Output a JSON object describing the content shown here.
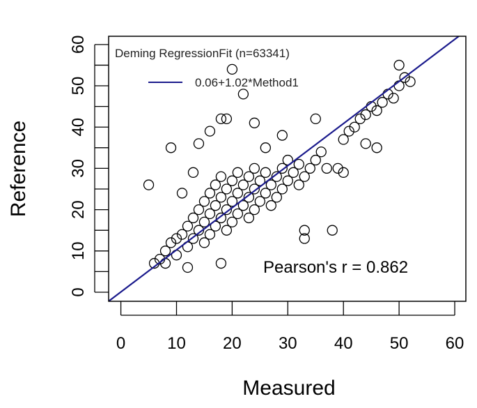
{
  "chart_data": {
    "type": "scatter",
    "xlabel": "Measured",
    "ylabel": "Reference",
    "xlim": [
      -2.2,
      62
    ],
    "ylim": [
      -2.2,
      62
    ],
    "x_ticks": [
      0,
      10,
      20,
      30,
      40,
      50,
      60
    ],
    "y_ticks": [
      0,
      10,
      20,
      30,
      40,
      50,
      60
    ],
    "legend": {
      "title": "Deming RegressionFit (n=63341)",
      "entry": "0.06+1.02*Method1",
      "position": "top-left"
    },
    "annotation": "Pearson's r = 0.862",
    "regression": {
      "intercept": 0.06,
      "slope": 1.02,
      "color": "#1a1a8c"
    },
    "point_color": "#000000",
    "series": [
      {
        "points": [
          [
            7,
            8
          ],
          [
            8,
            10
          ],
          [
            9,
            12
          ],
          [
            10,
            13
          ],
          [
            10,
            9
          ],
          [
            11,
            14
          ],
          [
            12,
            11
          ],
          [
            12,
            16
          ],
          [
            13,
            13
          ],
          [
            13,
            18
          ],
          [
            14,
            15
          ],
          [
            14,
            20
          ],
          [
            15,
            12
          ],
          [
            15,
            17
          ],
          [
            15,
            22
          ],
          [
            16,
            14
          ],
          [
            16,
            19
          ],
          [
            16,
            24
          ],
          [
            17,
            16
          ],
          [
            17,
            21
          ],
          [
            17,
            26
          ],
          [
            18,
            18
          ],
          [
            18,
            23
          ],
          [
            18,
            28
          ],
          [
            19,
            15
          ],
          [
            19,
            20
          ],
          [
            19,
            25
          ],
          [
            20,
            17
          ],
          [
            20,
            22
          ],
          [
            20,
            27
          ],
          [
            21,
            19
          ],
          [
            21,
            24
          ],
          [
            21,
            29
          ],
          [
            22,
            21
          ],
          [
            22,
            26
          ],
          [
            23,
            18
          ],
          [
            23,
            23
          ],
          [
            23,
            28
          ],
          [
            24,
            20
          ],
          [
            24,
            25
          ],
          [
            24,
            30
          ],
          [
            25,
            22
          ],
          [
            25,
            27
          ],
          [
            26,
            24
          ],
          [
            26,
            29
          ],
          [
            27,
            21
          ],
          [
            27,
            26
          ],
          [
            28,
            23
          ],
          [
            28,
            28
          ],
          [
            29,
            25
          ],
          [
            29,
            30
          ],
          [
            30,
            27
          ],
          [
            30,
            32
          ],
          [
            31,
            29
          ],
          [
            32,
            26
          ],
          [
            32,
            31
          ],
          [
            33,
            28
          ],
          [
            34,
            30
          ],
          [
            35,
            32
          ],
          [
            36,
            34
          ],
          [
            38,
            15
          ],
          [
            39,
            30
          ],
          [
            40,
            37
          ],
          [
            41,
            39
          ],
          [
            42,
            40
          ],
          [
            43,
            42
          ],
          [
            44,
            43
          ],
          [
            45,
            45
          ],
          [
            46,
            44
          ],
          [
            47,
            46
          ],
          [
            48,
            48
          ],
          [
            49,
            47
          ],
          [
            50,
            50
          ],
          [
            51,
            52
          ],
          [
            52,
            51
          ],
          [
            50,
            55
          ],
          [
            44,
            36
          ],
          [
            46,
            35
          ],
          [
            40,
            29
          ],
          [
            20,
            54
          ],
          [
            22,
            48
          ],
          [
            18,
            42
          ],
          [
            19,
            42
          ],
          [
            14,
            36
          ],
          [
            9,
            35
          ],
          [
            16,
            39
          ],
          [
            24,
            41
          ],
          [
            35,
            42
          ],
          [
            5,
            26
          ],
          [
            6,
            7
          ],
          [
            33,
            13
          ],
          [
            33,
            15
          ],
          [
            18,
            7
          ],
          [
            12,
            6
          ],
          [
            8,
            7
          ],
          [
            26,
            35
          ],
          [
            29,
            38
          ],
          [
            37,
            30
          ],
          [
            11,
            24
          ],
          [
            13,
            29
          ]
        ]
      }
    ]
  }
}
